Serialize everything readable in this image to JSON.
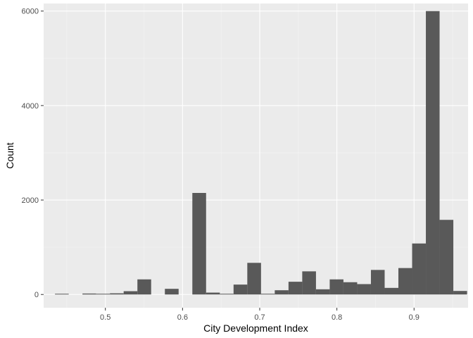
{
  "chart_data": {
    "type": "bar",
    "xlabel": "City Development Index",
    "ylabel": "Count",
    "xlim": [
      0.42,
      0.97
    ],
    "ylim": [
      -280,
      6160
    ],
    "x_ticks": [
      0.5,
      0.6,
      0.7,
      0.8,
      0.9
    ],
    "x_tick_labels": [
      "0.5",
      "0.6",
      "0.7",
      "0.8",
      "0.9"
    ],
    "y_ticks": [
      0,
      2000,
      4000,
      6000
    ],
    "y_tick_labels": [
      "0",
      "2000",
      "4000",
      "6000"
    ],
    "bin_width": 0.0178,
    "bins": [
      {
        "x": 0.4436,
        "count": 10
      },
      {
        "x": 0.4614,
        "count": 0
      },
      {
        "x": 0.4792,
        "count": 20
      },
      {
        "x": 0.497,
        "count": 10
      },
      {
        "x": 0.5148,
        "count": 25
      },
      {
        "x": 0.5326,
        "count": 70
      },
      {
        "x": 0.5504,
        "count": 320
      },
      {
        "x": 0.5682,
        "count": 0
      },
      {
        "x": 0.586,
        "count": 120
      },
      {
        "x": 0.6038,
        "count": 0
      },
      {
        "x": 0.6216,
        "count": 2150
      },
      {
        "x": 0.6394,
        "count": 40
      },
      {
        "x": 0.6572,
        "count": 15
      },
      {
        "x": 0.675,
        "count": 210
      },
      {
        "x": 0.6928,
        "count": 670
      },
      {
        "x": 0.7106,
        "count": 15
      },
      {
        "x": 0.7284,
        "count": 90
      },
      {
        "x": 0.7462,
        "count": 270
      },
      {
        "x": 0.764,
        "count": 490
      },
      {
        "x": 0.7818,
        "count": 110
      },
      {
        "x": 0.7996,
        "count": 320
      },
      {
        "x": 0.8174,
        "count": 260
      },
      {
        "x": 0.8352,
        "count": 220
      },
      {
        "x": 0.853,
        "count": 520
      },
      {
        "x": 0.8708,
        "count": 140
      },
      {
        "x": 0.8886,
        "count": 560
      },
      {
        "x": 0.9064,
        "count": 1080
      },
      {
        "x": 0.9242,
        "count": 6000
      },
      {
        "x": 0.942,
        "count": 1580
      },
      {
        "x": 0.9598,
        "count": 75
      }
    ],
    "colors": {
      "panel": "#ebebeb",
      "grid_major": "#ffffff",
      "grid_minor": "#f5f5f5",
      "bar": "#595959",
      "tick_text": "#4d4d4d",
      "tick_mark": "#333333"
    },
    "grid": true
  }
}
